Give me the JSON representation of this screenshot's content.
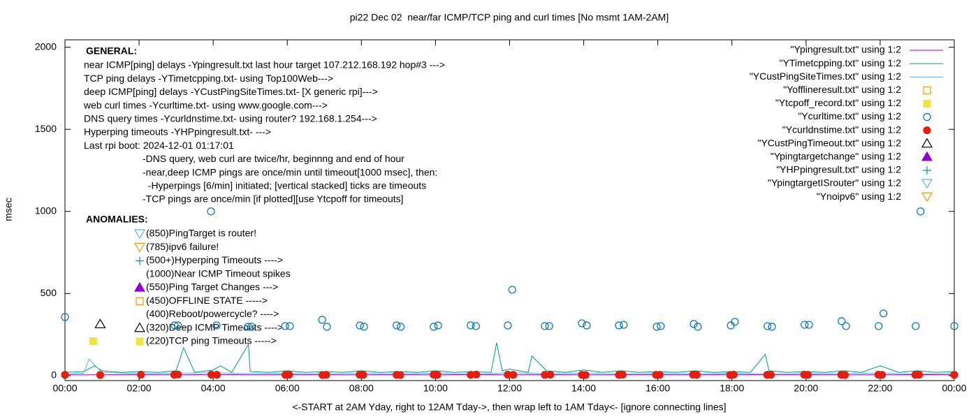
{
  "chart_data": {
    "type": "line",
    "title": "pi22 Dec 02  near/far ICMP/TCP ping and curl times [No msmt 1AM-2AM]",
    "xlabel": "<-START at 2AM Yday, right to 12AM Tday->, then wrap left to 1AM Tday<- [ignore connecting lines]",
    "ylabel": "msec",
    "xlim": [
      0,
      24
    ],
    "xticks": [
      {
        "value": 0,
        "label": "00:00"
      },
      {
        "value": 2,
        "label": "02:00"
      },
      {
        "value": 4,
        "label": "04:00"
      },
      {
        "value": 6,
        "label": "06:00"
      },
      {
        "value": 8,
        "label": "08:00"
      },
      {
        "value": 10,
        "label": "10:00"
      },
      {
        "value": 12,
        "label": "12:00"
      },
      {
        "value": 14,
        "label": "14:00"
      },
      {
        "value": 16,
        "label": "16:00"
      },
      {
        "value": 18,
        "label": "18:00"
      },
      {
        "value": 20,
        "label": "20:00"
      },
      {
        "value": 22,
        "label": "22:00"
      },
      {
        "value": 24,
        "label": "00:00"
      }
    ],
    "ylim": [
      -30,
      2045
    ],
    "yticks": [
      0,
      500,
      1000,
      1500,
      2000
    ],
    "grid": false,
    "legend": "top-right",
    "general_heading": "GENERAL:",
    "general_notes": [
      "near ICMP[ping] delays -Ypingresult.txt last hour target 107.212.168.192 hop#3 --->",
      "TCP ping delays -YTimetcpping.txt- using Top100Web--->",
      "deep ICMP[ping] delays -YCustPingSiteTimes.txt- [X generic rpi]--->",
      "web curl times -Ycurltime.txt- using www.google.com--->",
      "DNS query times -Ycurldnstime.txt- using router? 192.168.1.254--->",
      "Hyperping timeouts -YHPpingresult.txt- --->",
      "Last rpi boot: 2024-12-01 01:17:01",
      "-DNS query, web curl are twice/hr, beginnng and end of hour",
      "-near,deep ICMP pings are once/min until timeout[1000 msec], then:",
      "  -Hyperpings [6/min] initiated; [vertical stacked] ticks are timeouts",
      "-TCP pings are once/min [if plotted][use Ytcpoff for timeouts]"
    ],
    "anomalies_heading": "ANOMALIES:",
    "anomalies": [
      "(850)PingTarget is router!",
      "(785)ipv6 failure!",
      "(500+)Hyperping Timeouts ---->",
      "(1000)Near ICMP Timeout spikes",
      "(550)Ping Target Changes --->",
      "(450)OFFLINE STATE ----->",
      "(400)Reboot/powercycle? ---->",
      "(320)Deep ICMP Timeouts ---->",
      "(220)TCP ping Timeouts ----->"
    ],
    "series": [
      {
        "name": "\"Ypingresult.txt\" using 1:2",
        "color": "#9400d3",
        "style": "line",
        "x": [
          0,
          2,
          3,
          4,
          5,
          6,
          7,
          8,
          9,
          10,
          11,
          12,
          13,
          14,
          15,
          16,
          17,
          18,
          19,
          20,
          21,
          22,
          23,
          24
        ],
        "values": [
          5,
          6,
          5,
          7,
          5,
          6,
          5,
          5,
          6,
          5,
          7,
          5,
          6,
          5,
          5,
          6,
          5,
          7,
          5,
          6,
          5,
          5,
          6,
          5
        ]
      },
      {
        "name": "\"YTimetcpping.txt\" using 1:2",
        "color": "#009e73",
        "style": "line",
        "x": [
          0,
          0.5,
          0.8,
          1,
          1.5,
          2,
          2.5,
          3,
          3.2,
          3.5,
          4,
          4.2,
          4.5,
          4.95,
          5,
          5.5,
          6,
          6.5,
          7,
          7.5,
          8,
          8.5,
          9,
          9.5,
          10,
          10.5,
          11,
          11.5,
          11.65,
          11.8,
          12,
          12.5,
          12.6,
          13,
          13.5,
          14,
          14.5,
          15,
          15.5,
          16,
          16.5,
          17,
          17.5,
          18,
          18.5,
          18.9,
          19,
          19.5,
          20,
          20.5,
          21,
          21.5,
          22,
          22.5,
          23,
          23.5,
          24
        ],
        "values": [
          20,
          25,
          60,
          30,
          20,
          25,
          20,
          30,
          170,
          20,
          35,
          60,
          20,
          190,
          25,
          20,
          30,
          20,
          25,
          20,
          30,
          20,
          25,
          20,
          30,
          20,
          25,
          20,
          200,
          30,
          40,
          20,
          120,
          30,
          20,
          35,
          20,
          30,
          20,
          25,
          20,
          30,
          20,
          25,
          20,
          130,
          30,
          20,
          25,
          20,
          30,
          20,
          60,
          20,
          30,
          20,
          25
        ]
      },
      {
        "name": "\"YCustPingSiteTimes.txt\" using 1:2",
        "color": "#56b4e9",
        "style": "line",
        "x": [
          0,
          0.5,
          0.65,
          1,
          2,
          3,
          4,
          5,
          6,
          7,
          8,
          9,
          10,
          11,
          12,
          13,
          14,
          15,
          16,
          17,
          18,
          19,
          20,
          21,
          22,
          23,
          24
        ],
        "values": [
          10,
          15,
          100,
          20,
          12,
          15,
          18,
          12,
          15,
          10,
          14,
          12,
          15,
          10,
          18,
          12,
          15,
          10,
          14,
          12,
          15,
          10,
          14,
          12,
          15,
          10,
          12
        ]
      },
      {
        "name": "\"Yofflineresult.txt\" using 1:2",
        "color": "#e69f00",
        "style": "open-square",
        "x": [],
        "values": []
      },
      {
        "name": "\"Ytcpoff_record.txt\" using 1:2",
        "color": "#f0e442",
        "style": "filled-square",
        "x": [
          0.76
        ],
        "values": [
          210
        ]
      },
      {
        "name": "\"Ycurltime.txt\" using 1:2",
        "color": "#0072b2",
        "style": "open-circle",
        "x": [
          0,
          2.96,
          3.05,
          3.94,
          4.09,
          4.94,
          5.03,
          5.94,
          6.07,
          6.94,
          7.07,
          7.96,
          8.07,
          8.95,
          9.06,
          9.95,
          10.07,
          10.95,
          11.09,
          11.95,
          12.07,
          12.95,
          13.07,
          13.95,
          14.08,
          14.95,
          15.08,
          15.97,
          16.08,
          16.97,
          17.08,
          17.97,
          18.08,
          18.96,
          19.08,
          19.96,
          20.08,
          20.96,
          21.08,
          21.96,
          22.09,
          22.96,
          23.09,
          24
        ],
        "values": [
          357,
          306,
          306,
          1000,
          306,
          298,
          298,
          302,
          302,
          340,
          298,
          306,
          298,
          306,
          298,
          298,
          306,
          306,
          302,
          306,
          523,
          302,
          302,
          319,
          306,
          306,
          310,
          298,
          302,
          315,
          298,
          306,
          328,
          302,
          298,
          310,
          310,
          332,
          302,
          302,
          379,
          302,
          1000,
          302
        ]
      },
      {
        "name": "\"Ycurldnstime.txt\" using 1:2",
        "color": "#e51e10",
        "style": "filled-circle",
        "x": [
          0,
          0.95,
          2.05,
          2.95,
          3.05,
          3.95,
          4.1,
          5.95,
          6.05,
          6.95,
          7.05,
          7.95,
          8.05,
          8.95,
          9.05,
          9.95,
          10.05,
          10.95,
          11.1,
          11.95,
          12.1,
          12.95,
          13.1,
          13.95,
          14.05,
          14.95,
          15.05,
          15.95,
          16.05,
          16.95,
          17.05,
          17.95,
          18.05,
          18.95,
          19.05,
          19.95,
          20.05,
          20.95,
          21.05,
          21.95,
          22.05,
          22.95,
          23.05,
          24
        ],
        "values": [
          5,
          4,
          6,
          5,
          7,
          6,
          5,
          5,
          6,
          4,
          5,
          6,
          5,
          5,
          4,
          6,
          5,
          5,
          7,
          6,
          5,
          5,
          6,
          5,
          4,
          5,
          6,
          5,
          5,
          6,
          5,
          4,
          6,
          5,
          5,
          6,
          5,
          5,
          4,
          6,
          5,
          5,
          6,
          5
        ]
      },
      {
        "name": "\"YCustPingTimeout.txt\" using 1:2",
        "color": "#000000",
        "style": "open-triangle",
        "x": [
          0.95
        ],
        "values": [
          313
        ]
      },
      {
        "name": "\"Ypingtargetchange\" using 1:2",
        "color": "#9400d3",
        "style": "filled-triangle",
        "x": [],
        "values": []
      },
      {
        "name": "\"YHPpingresult.txt\" using 1:2",
        "color": "#009e73",
        "style": "plus",
        "x": [],
        "values": []
      },
      {
        "name": "\"YpingtargetISrouter\" using 1:2",
        "color": "#56b4e9",
        "style": "open-down-triangle",
        "x": [],
        "values": []
      },
      {
        "name": "\"Ynoipv6\" using 1:2",
        "color": "#e69f00",
        "style": "open-down-triangle",
        "x": [],
        "values": []
      }
    ]
  }
}
